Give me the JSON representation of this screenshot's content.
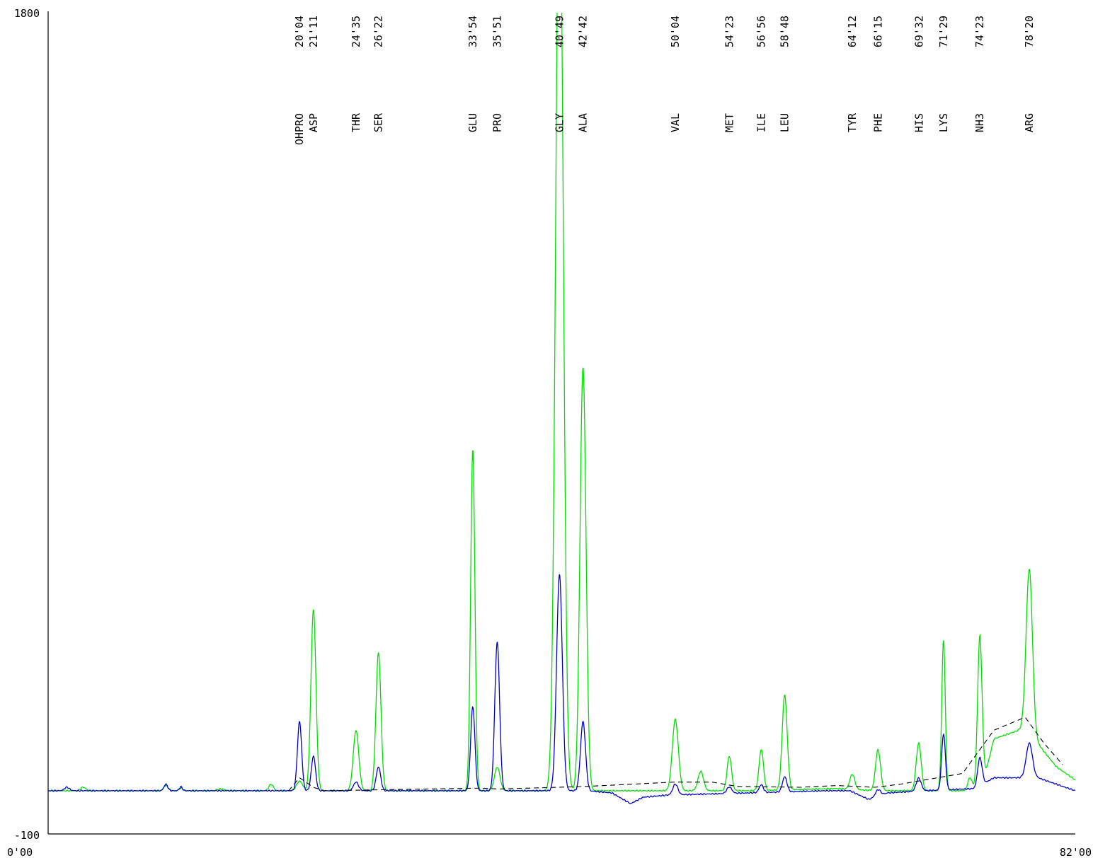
{
  "colors": {
    "series_1": "#00e000",
    "series_2": "#0000cc",
    "baseline": "#000000",
    "axis": "#000000",
    "background": "#ffffff"
  },
  "chart_data": {
    "type": "line",
    "title": "",
    "xlabel": "",
    "ylabel": "",
    "xlim": [
      0,
      82
    ],
    "ylim": [
      -100,
      1800
    ],
    "x_unit": "minutes",
    "tick_labels": {
      "y_max": "1800",
      "y_min": "-100",
      "x_min": "0'00",
      "x_max": "82'00"
    },
    "grid": false,
    "legend": "none",
    "series": [
      {
        "color": "#00e000",
        "baseline": 0,
        "noise": 1.5,
        "drift": [
          [
            0,
            0
          ],
          [
            56,
            0
          ],
          [
            63,
            5
          ],
          [
            66,
            0
          ],
          [
            68,
            0
          ],
          [
            74.5,
            0
          ],
          [
            75.5,
            120
          ],
          [
            78,
            145
          ],
          [
            80.5,
            55
          ],
          [
            82,
            25
          ]
        ],
        "peaks": [
          {
            "t": 2.8,
            "h": 8,
            "w": 0.2
          },
          {
            "t": 9.4,
            "h": 12,
            "w": 0.18
          },
          {
            "t": 10.6,
            "h": 6,
            "w": 0.15
          },
          {
            "t": 13.8,
            "h": 4,
            "w": 0.3
          },
          {
            "t": 17.8,
            "h": 15,
            "w": 0.18
          },
          {
            "t": 20.07,
            "h": 22,
            "w": 0.25
          },
          {
            "t": 21.18,
            "h": 420,
            "w": 0.2
          },
          {
            "t": 24.58,
            "h": 140,
            "w": 0.22
          },
          {
            "t": 26.37,
            "h": 320,
            "w": 0.2
          },
          {
            "t": 33.9,
            "h": 790,
            "w": 0.17
          },
          {
            "t": 35.85,
            "h": 55,
            "w": 0.22
          },
          {
            "t": 40.82,
            "h": 2200,
            "w": 0.3
          },
          {
            "t": 42.7,
            "h": 980,
            "w": 0.24
          },
          {
            "t": 50.07,
            "h": 165,
            "w": 0.24
          },
          {
            "t": 52.1,
            "h": 45,
            "w": 0.22
          },
          {
            "t": 54.38,
            "h": 80,
            "w": 0.18
          },
          {
            "t": 56.93,
            "h": 95,
            "w": 0.18
          },
          {
            "t": 58.8,
            "h": 220,
            "w": 0.2
          },
          {
            "t": 64.2,
            "h": 35,
            "w": 0.2
          },
          {
            "t": 66.25,
            "h": 95,
            "w": 0.2
          },
          {
            "t": 69.5,
            "h": 110,
            "w": 0.2
          },
          {
            "t": 71.48,
            "h": 350,
            "w": 0.14
          },
          {
            "t": 73.6,
            "h": 30,
            "w": 0.18
          },
          {
            "t": 74.38,
            "h": 360,
            "w": 0.18
          },
          {
            "t": 78.33,
            "h": 380,
            "w": 0.25
          }
        ]
      },
      {
        "color": "#0000cc",
        "baseline": 0,
        "noise": 1.5,
        "drift": [
          [
            0,
            0
          ],
          [
            43,
            0
          ],
          [
            45,
            -5
          ],
          [
            46.5,
            -30
          ],
          [
            47.5,
            -15
          ],
          [
            49.5,
            -10
          ],
          [
            56,
            -5
          ],
          [
            62,
            0
          ],
          [
            64,
            0
          ],
          [
            65.5,
            -20
          ],
          [
            67,
            -5
          ],
          [
            70,
            0
          ],
          [
            74,
            5
          ],
          [
            75.5,
            30
          ],
          [
            79,
            30
          ],
          [
            80.5,
            15
          ],
          [
            82,
            0
          ]
        ],
        "peaks": [
          {
            "t": 1.5,
            "h": 8,
            "w": 0.2
          },
          {
            "t": 9.4,
            "h": 15,
            "w": 0.15
          },
          {
            "t": 10.6,
            "h": 9,
            "w": 0.12
          },
          {
            "t": 20.07,
            "h": 160,
            "w": 0.17
          },
          {
            "t": 21.18,
            "h": 80,
            "w": 0.17
          },
          {
            "t": 24.58,
            "h": 20,
            "w": 0.2
          },
          {
            "t": 26.37,
            "h": 55,
            "w": 0.18
          },
          {
            "t": 33.9,
            "h": 195,
            "w": 0.17
          },
          {
            "t": 35.85,
            "h": 345,
            "w": 0.19
          },
          {
            "t": 40.82,
            "h": 500,
            "w": 0.23
          },
          {
            "t": 42.7,
            "h": 160,
            "w": 0.2
          },
          {
            "t": 50.07,
            "h": 25,
            "w": 0.2
          },
          {
            "t": 54.38,
            "h": 15,
            "w": 0.2
          },
          {
            "t": 56.93,
            "h": 18,
            "w": 0.17
          },
          {
            "t": 58.8,
            "h": 35,
            "w": 0.18
          },
          {
            "t": 66.25,
            "h": 15,
            "w": 0.2
          },
          {
            "t": 69.5,
            "h": 30,
            "w": 0.2
          },
          {
            "t": 71.48,
            "h": 130,
            "w": 0.15
          },
          {
            "t": 74.38,
            "h": 65,
            "w": 0.18
          },
          {
            "t": 78.33,
            "h": 80,
            "w": 0.25
          }
        ]
      }
    ],
    "integration_baseline": {
      "style": "dashed",
      "color": "#000000",
      "points": [
        [
          19.2,
          0
        ],
        [
          20.07,
          30
        ],
        [
          21.18,
          8
        ],
        [
          22,
          0
        ],
        [
          34.5,
          6
        ],
        [
          36,
          4
        ],
        [
          43,
          10
        ],
        [
          50,
          20
        ],
        [
          53,
          20
        ],
        [
          55,
          10
        ],
        [
          60,
          8
        ],
        [
          63,
          12
        ],
        [
          66,
          8
        ],
        [
          68,
          15
        ],
        [
          71,
          30
        ],
        [
          73,
          40
        ],
        [
          75.5,
          140
        ],
        [
          78,
          170
        ],
        [
          79.5,
          110
        ],
        [
          81,
          60
        ]
      ]
    },
    "peak_labels": [
      {
        "time": "20'04",
        "name": "OHPRO",
        "t": 20.07
      },
      {
        "time": "21'11",
        "name": "ASP",
        "t": 21.18
      },
      {
        "time": "24'35",
        "name": "THR",
        "t": 24.58
      },
      {
        "time": "26'22",
        "name": "SER",
        "t": 26.37
      },
      {
        "time": "33'54",
        "name": "GLU",
        "t": 33.9
      },
      {
        "time": "35'51",
        "name": "PRO",
        "t": 35.85
      },
      {
        "time": "40'49",
        "name": "GLY",
        "t": 40.82
      },
      {
        "time": "42'42",
        "name": "ALA",
        "t": 42.7
      },
      {
        "time": "50'04",
        "name": "VAL",
        "t": 50.07
      },
      {
        "time": "54'23",
        "name": "MET",
        "t": 54.38
      },
      {
        "time": "56'56",
        "name": "ILE",
        "t": 56.93
      },
      {
        "time": "58'48",
        "name": "LEU",
        "t": 58.8
      },
      {
        "time": "64'12",
        "name": "TYR",
        "t": 64.2
      },
      {
        "time": "66'15",
        "name": "PHE",
        "t": 66.25
      },
      {
        "time": "69'32",
        "name": "HIS",
        "t": 69.53
      },
      {
        "time": "71'29",
        "name": "LYS",
        "t": 71.48
      },
      {
        "time": "74'23",
        "name": "NH3",
        "t": 74.38
      },
      {
        "time": "78'20",
        "name": "ARG",
        "t": 78.33
      }
    ]
  }
}
